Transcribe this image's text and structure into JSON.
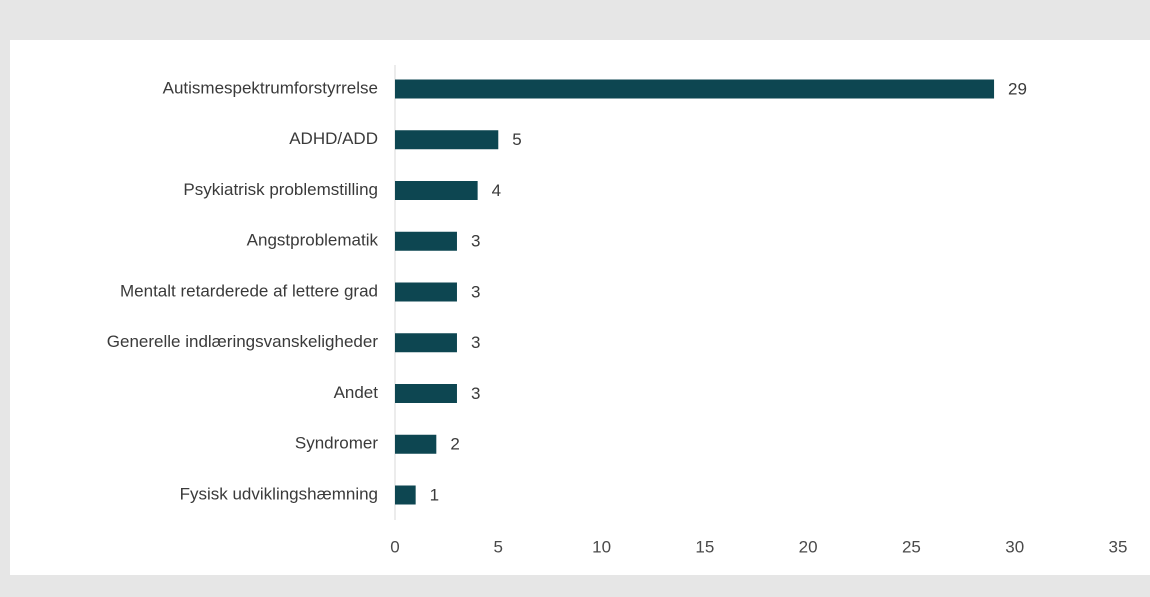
{
  "chart_data": {
    "type": "bar",
    "orientation": "horizontal",
    "categories": [
      "Autismespektrumforstyrrelse",
      "ADHD/ADD",
      "Psykiatrisk problemstilling",
      "Angstproblematik",
      "Mentalt retarderede af lettere grad",
      "Generelle indlæringsvanskeligheder",
      "Andet",
      "Syndromer",
      "Fysisk udviklingshæmning"
    ],
    "values": [
      29,
      5,
      4,
      3,
      3,
      3,
      3,
      2,
      1
    ],
    "data_labels": [
      "29",
      "5",
      "4",
      "3",
      "3",
      "3",
      "3",
      "2",
      "1"
    ],
    "xlim": [
      0,
      35
    ],
    "x_ticks": [
      0,
      5,
      10,
      15,
      20,
      25,
      30,
      35
    ],
    "x_tick_labels": [
      "0",
      "5",
      "10",
      "15",
      "20",
      "25",
      "30",
      "35"
    ],
    "bar_color": "#0d4651",
    "grid": false,
    "legend": "none"
  }
}
